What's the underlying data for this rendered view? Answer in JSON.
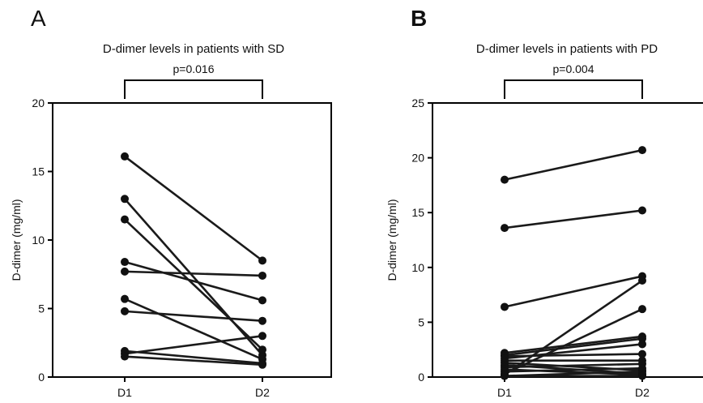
{
  "chart_data": [
    {
      "type": "line",
      "panel": "A",
      "title": "D-dimer levels in patients with SD",
      "p_value": "p=0.016",
      "xlabel": "",
      "ylabel": "D-dimer (mg/ml)",
      "categories": [
        "D1",
        "D2"
      ],
      "ylim": [
        0,
        20
      ],
      "yticks": [
        0,
        5,
        10,
        15,
        20
      ],
      "grid": false,
      "legend": "none",
      "series": [
        {
          "values": [
            16.1,
            8.5
          ]
        },
        {
          "values": [
            13.0,
            1.6
          ]
        },
        {
          "values": [
            11.5,
            2.0
          ]
        },
        {
          "values": [
            8.4,
            5.6
          ]
        },
        {
          "values": [
            7.7,
            7.4
          ]
        },
        {
          "values": [
            5.7,
            1.3
          ]
        },
        {
          "values": [
            4.8,
            4.1
          ]
        },
        {
          "values": [
            1.9,
            1.0
          ]
        },
        {
          "values": [
            1.7,
            3.0
          ]
        },
        {
          "values": [
            1.5,
            0.9
          ]
        }
      ]
    },
    {
      "type": "line",
      "panel": "B",
      "title": "D-dimer levels in patients with PD",
      "p_value": "p=0.004",
      "xlabel": "",
      "ylabel": "D-dimer (mg/ml)",
      "categories": [
        "D1",
        "D2"
      ],
      "ylim": [
        0,
        25
      ],
      "yticks": [
        0,
        5,
        10,
        15,
        20,
        25
      ],
      "grid": false,
      "legend": "none",
      "series": [
        {
          "values": [
            18.0,
            20.7
          ]
        },
        {
          "values": [
            13.6,
            15.2
          ]
        },
        {
          "values": [
            6.4,
            9.2
          ]
        },
        {
          "values": [
            2.2,
            3.7
          ]
        },
        {
          "values": [
            2.0,
            3.5
          ]
        },
        {
          "values": [
            1.9,
            2.1
          ]
        },
        {
          "values": [
            1.7,
            3.0
          ]
        },
        {
          "values": [
            1.5,
            1.5
          ]
        },
        {
          "values": [
            1.3,
            0.6
          ]
        },
        {
          "values": [
            1.1,
            0.3
          ]
        },
        {
          "values": [
            0.9,
            1.2
          ]
        },
        {
          "values": [
            0.7,
            0.2
          ]
        },
        {
          "values": [
            0.5,
            0.8
          ]
        },
        {
          "values": [
            0.3,
            6.2
          ]
        },
        {
          "values": [
            0.2,
            8.8
          ]
        },
        {
          "values": [
            0.1,
            0.5
          ]
        },
        {
          "values": [
            0.1,
            0.1
          ]
        }
      ]
    }
  ],
  "panels": {
    "a": {
      "letter": "A"
    },
    "b": {
      "letter": "B"
    }
  },
  "colors": {
    "line": "#1a1a1a",
    "marker": "#111111",
    "axis": "#000000"
  }
}
